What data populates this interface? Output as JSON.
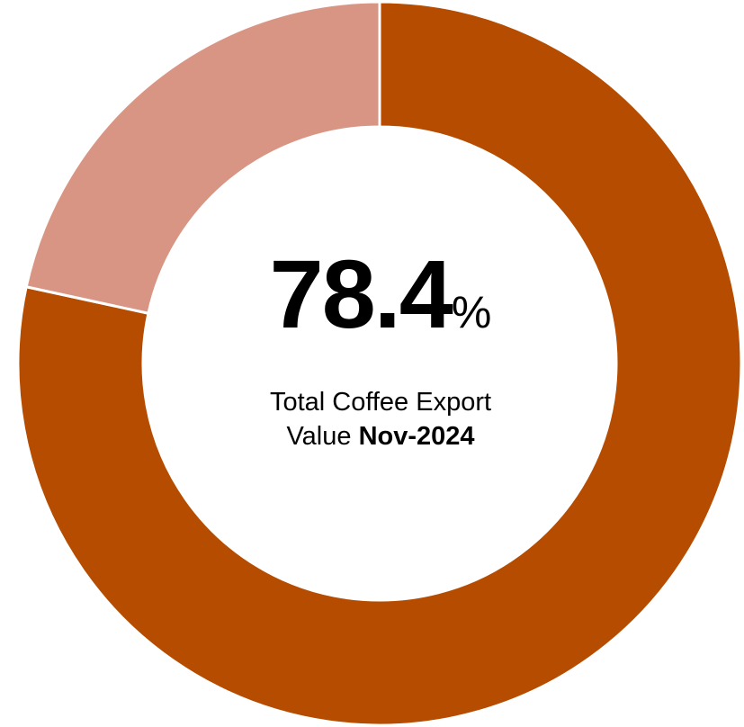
{
  "chart_data": {
    "type": "pie",
    "variant": "donut",
    "slices": [
      {
        "value": 78.4,
        "color": "#B54C00"
      },
      {
        "value": 21.6,
        "color": "#D99584"
      }
    ],
    "start_angle": "12 o'clock, clockwise",
    "center_text": {
      "value": "78.4",
      "unit": "%",
      "caption_line1": "Total Coffee Export",
      "caption_line2_prefix": "Value",
      "caption_line2_bold": "Nov-2024"
    }
  }
}
